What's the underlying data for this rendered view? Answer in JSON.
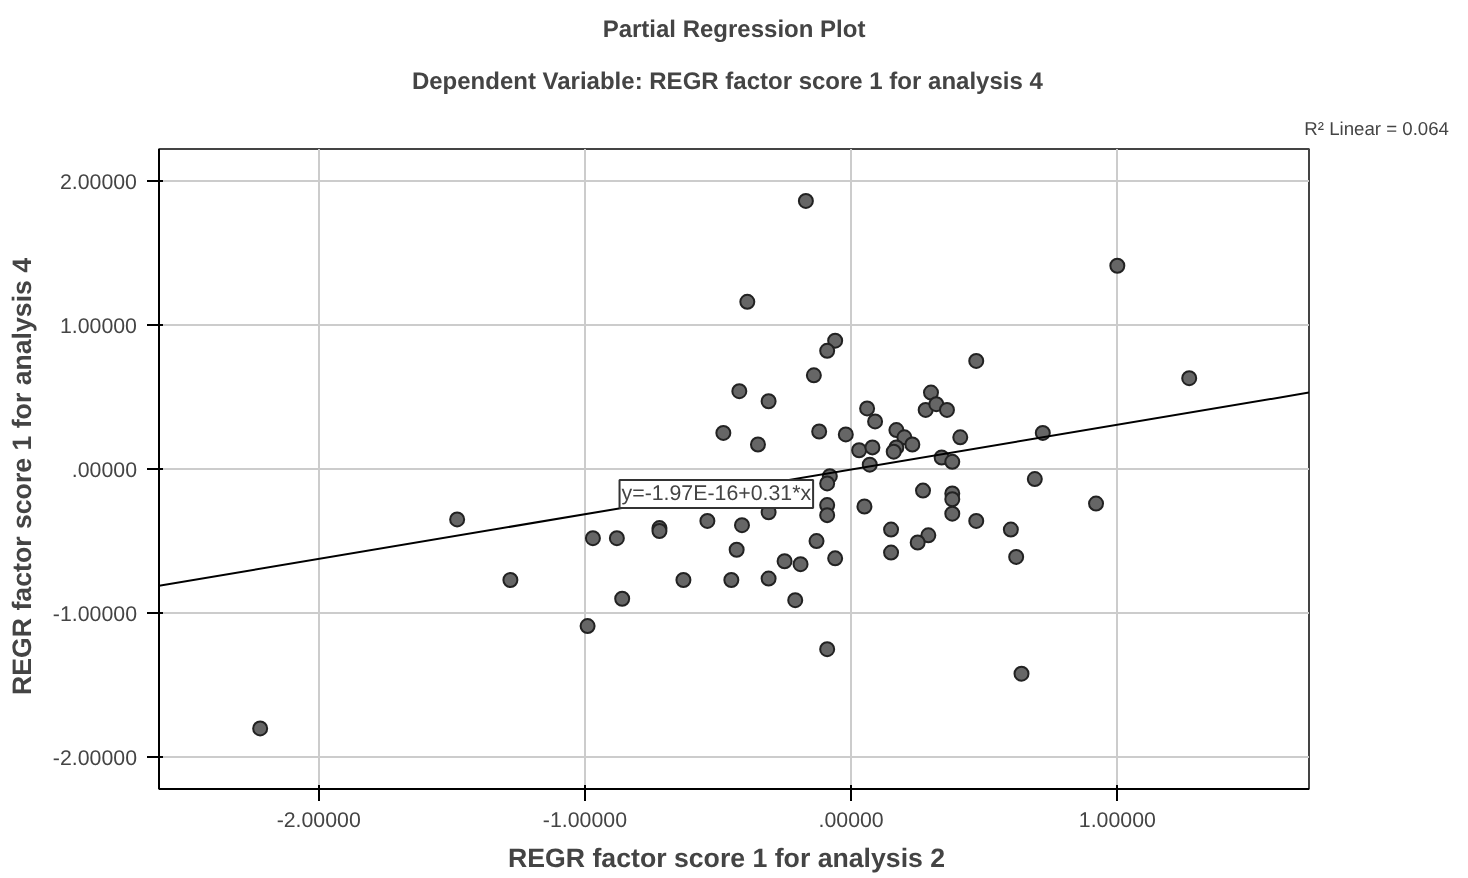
{
  "chart_data": {
    "type": "scatter",
    "title": "Partial Regression Plot",
    "subtitle": "Dependent Variable: REGR factor score   1 for analysis 4",
    "xlabel": "REGR factor score   1 for analysis 2",
    "ylabel": "REGR factor score   1 for analysis 4",
    "xlim": [
      -2.6,
      1.72
    ],
    "ylim": [
      -2.22,
      2.22
    ],
    "xticks": [
      {
        "value": -2,
        "label": "-2.00000"
      },
      {
        "value": -1,
        "label": "-1.00000"
      },
      {
        "value": 0,
        "label": ".00000"
      },
      {
        "value": 1,
        "label": "1.00000"
      }
    ],
    "yticks": [
      {
        "value": -2,
        "label": "-2.00000"
      },
      {
        "value": -1,
        "label": "-1.00000"
      },
      {
        "value": 0,
        "label": ".00000"
      },
      {
        "value": 1,
        "label": "1.00000"
      },
      {
        "value": 2,
        "label": "2.00000"
      }
    ],
    "grid": true,
    "marker": "circle",
    "series": [
      {
        "color": "#666666",
        "x": [
          -0.39,
          -0.42,
          -0.31,
          -0.48,
          -0.35,
          -1.48,
          -0.31,
          -0.97,
          -0.88,
          -0.72,
          -0.72,
          -0.54,
          -0.41,
          -0.43,
          -1.28,
          -0.63,
          -0.45,
          -0.31,
          -0.86,
          -0.99,
          -2.22,
          -0.17,
          1.0,
          -0.06,
          -0.09,
          0.47,
          -0.14,
          1.27,
          0.3,
          0.28,
          0.32,
          0.36,
          0.06,
          0.09,
          -0.12,
          -0.02,
          0.17,
          0.2,
          0.17,
          0.23,
          0.16,
          0.03,
          0.08,
          0.41,
          0.72,
          0.07,
          0.34,
          0.38,
          -0.08,
          0.69,
          -0.09,
          0.27,
          0.38,
          0.38,
          0.92,
          0.05,
          -0.09,
          -0.09,
          0.38,
          0.47,
          0.6,
          0.15,
          -0.13,
          0.29,
          0.25,
          0.15,
          0.62,
          -0.25,
          -0.19,
          -0.06,
          -0.21,
          -0.09,
          0.64
        ],
        "values": [
          1.16,
          0.54,
          0.47,
          0.25,
          0.17,
          -0.35,
          -0.3,
          -0.48,
          -0.48,
          -0.41,
          -0.43,
          -0.36,
          -0.39,
          -0.56,
          -0.77,
          -0.77,
          -0.77,
          -0.76,
          -0.9,
          -1.09,
          -1.8,
          1.86,
          1.41,
          0.89,
          0.82,
          0.75,
          0.65,
          0.63,
          0.53,
          0.41,
          0.45,
          0.41,
          0.42,
          0.33,
          0.26,
          0.24,
          0.27,
          0.22,
          0.15,
          0.17,
          0.12,
          0.13,
          0.15,
          0.22,
          0.25,
          0.03,
          0.08,
          0.05,
          -0.05,
          -0.07,
          -0.1,
          -0.15,
          -0.17,
          -0.21,
          -0.24,
          -0.26,
          -0.25,
          -0.32,
          -0.31,
          -0.36,
          -0.42,
          -0.42,
          -0.5,
          -0.46,
          -0.51,
          -0.58,
          -0.61,
          -0.64,
          -0.66,
          -0.62,
          -0.91,
          -1.25,
          -1.42
        ]
      },
      {
        "type": "line",
        "color": "#000000",
        "marker": "none",
        "x": [
          -2.6,
          1.72
        ],
        "values": [
          -0.81,
          0.53
        ]
      }
    ],
    "annotations": [
      {
        "text": "y=-1.97E-16+0.31*x",
        "x": -0.87,
        "y": -0.27
      },
      "R² Linear = 0.064"
    ]
  }
}
